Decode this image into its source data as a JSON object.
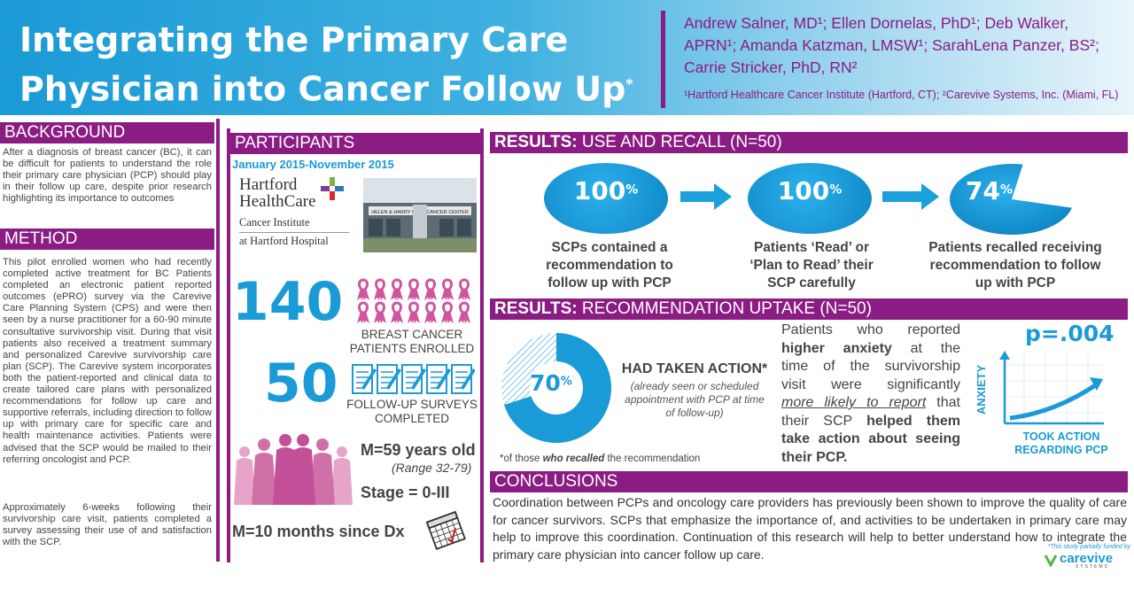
{
  "header": {
    "title_line1": "Integrating the Primary Care",
    "title_line2": "Physician into Cancer Follow Up",
    "title_mark": "*",
    "authors_line1": "Andrew Salner, MD¹; Ellen Dornelas, PhD¹; Deb Walker,",
    "authors_line2": "APRN¹; Amanda Katzman, LMSW¹; SarahLena Panzer, BS²;",
    "authors_line3": "Carrie Stricker, PhD, RN²",
    "affiliations": "¹Hartford Healthcare Cancer Institute (Hartford, CT); ²Carevive Systems, Inc. (Miami, FL)"
  },
  "background": {
    "heading": "BACKGROUND",
    "text": "After a diagnosis of breast cancer (BC), it can be difficult for patients to understand the role their primary care physician (PCP) should play in their follow up care, despite prior research highlighting its importance to outcomes"
  },
  "method": {
    "heading": "METHOD",
    "p1": "This pilot enrolled women who had recently completed active treatment for BC Patients completed an electronic patient reported outcomes (ePRO) survey via the Carevive Care Planning System (CPS) and were then seen by a nurse practitioner for a 60-90 minute consultative survivorship visit. During that visit patients also received a treatment summary and personalized Carevive survivorship care plan (SCP). The Carevive system incorporates both the patient-reported and clinical data to create tailored care plans with personalized recommendations for follow up care and supportive referrals, including direction to follow up with primary care for specific care and health maintenance activities. Patients were advised that the SCP would be mailed to their referring oncologist and PCP.",
    "p2": "Approximately 6-weeks following their survivorship care visit, patients completed a survey assessing their use of and satisfaction with the SCP."
  },
  "participants": {
    "heading": "PARTICIPANTS",
    "date_range": "January 2015-November 2015",
    "logo_line1": "Hartford",
    "logo_line2": "HealthCare",
    "logo_line3": "Cancer Institute",
    "logo_line4": "at Hartford Hospital",
    "building_sign": "HELEN & HARRY GRAY CANCER CENTER",
    "enrolled_num": "140",
    "enrolled_label_1": "BREAST CANCER",
    "enrolled_label_2": "PATIENTS ENROLLED",
    "surveys_num": "50",
    "surveys_label_1": "FOLLOW-UP SURVEYS",
    "surveys_label_2": "COMPLETED",
    "mean_age": "M=59 years old",
    "age_range": "(Range 32-79)",
    "stage": "Stage = 0-III",
    "months_dx": "M=10 months since Dx"
  },
  "results_recall": {
    "heading_bold": "RESULTS:",
    "heading_rest": " USE AND RECALL (N=50)",
    "items": [
      {
        "value": "100",
        "unit": "%",
        "caption_1": "SCPs contained a",
        "caption_2": "recommendation to",
        "caption_3": "follow up with PCP"
      },
      {
        "value": "100",
        "unit": "%",
        "caption_1": "Patients ‘Read’ or",
        "caption_2": "‘Plan to Read’ their",
        "caption_3": "SCP carefully"
      },
      {
        "value": "74",
        "unit": "%",
        "caption_1": "Patients recalled receiving",
        "caption_2": "recommendation to follow",
        "caption_3": "up with PCP"
      }
    ]
  },
  "results_uptake": {
    "heading_bold": "RESULTS:",
    "heading_rest": " RECOMMENDATION UPTAKE (N=50)",
    "donut_value": "70",
    "donut_unit": "%",
    "action_title": "HAD TAKEN ACTION*",
    "action_sub_1": "(already seen or scheduled",
    "action_sub_2": "appointment with PCP at time",
    "action_sub_3": "of follow-up)",
    "footnote_pre": "*of those ",
    "footnote_em": "who recalled",
    "footnote_post": " the recommendation",
    "finding_1": "Patients who reported",
    "finding_2a": "higher anxiety",
    "finding_2b": " at the",
    "finding_3": "time of the survivorship",
    "finding_4": "visit were significantly",
    "finding_5a": "more likely to report",
    "finding_5b": " that",
    "finding_6a": "their SCP ",
    "finding_6b": "helped them",
    "finding_7": "take action about seeing",
    "finding_8": "their PCP.",
    "pvalue": "p=.004",
    "y_label": "ANXIETY",
    "x_label_1": "TOOK ACTION",
    "x_label_2": "REGARDING PCP"
  },
  "conclusions": {
    "heading": "CONCLUSIONS",
    "text": "Coordination between PCPs and oncology care providers has previously been shown to improve the quality of care for cancer survivors. SCPs that emphasize the importance of, and activities to be undertaken in primary care may help to improve this coordination. Continuation of this research will help to better understand how to integrate the primary care physician into cancer follow up care.",
    "funding": "*This study partially funded by",
    "funder": "carevive",
    "funder_sub": "SYSTEMS"
  },
  "colors": {
    "purple": "#8b1c84",
    "blue": "#1a9ad6",
    "pink": "#d0559e"
  }
}
